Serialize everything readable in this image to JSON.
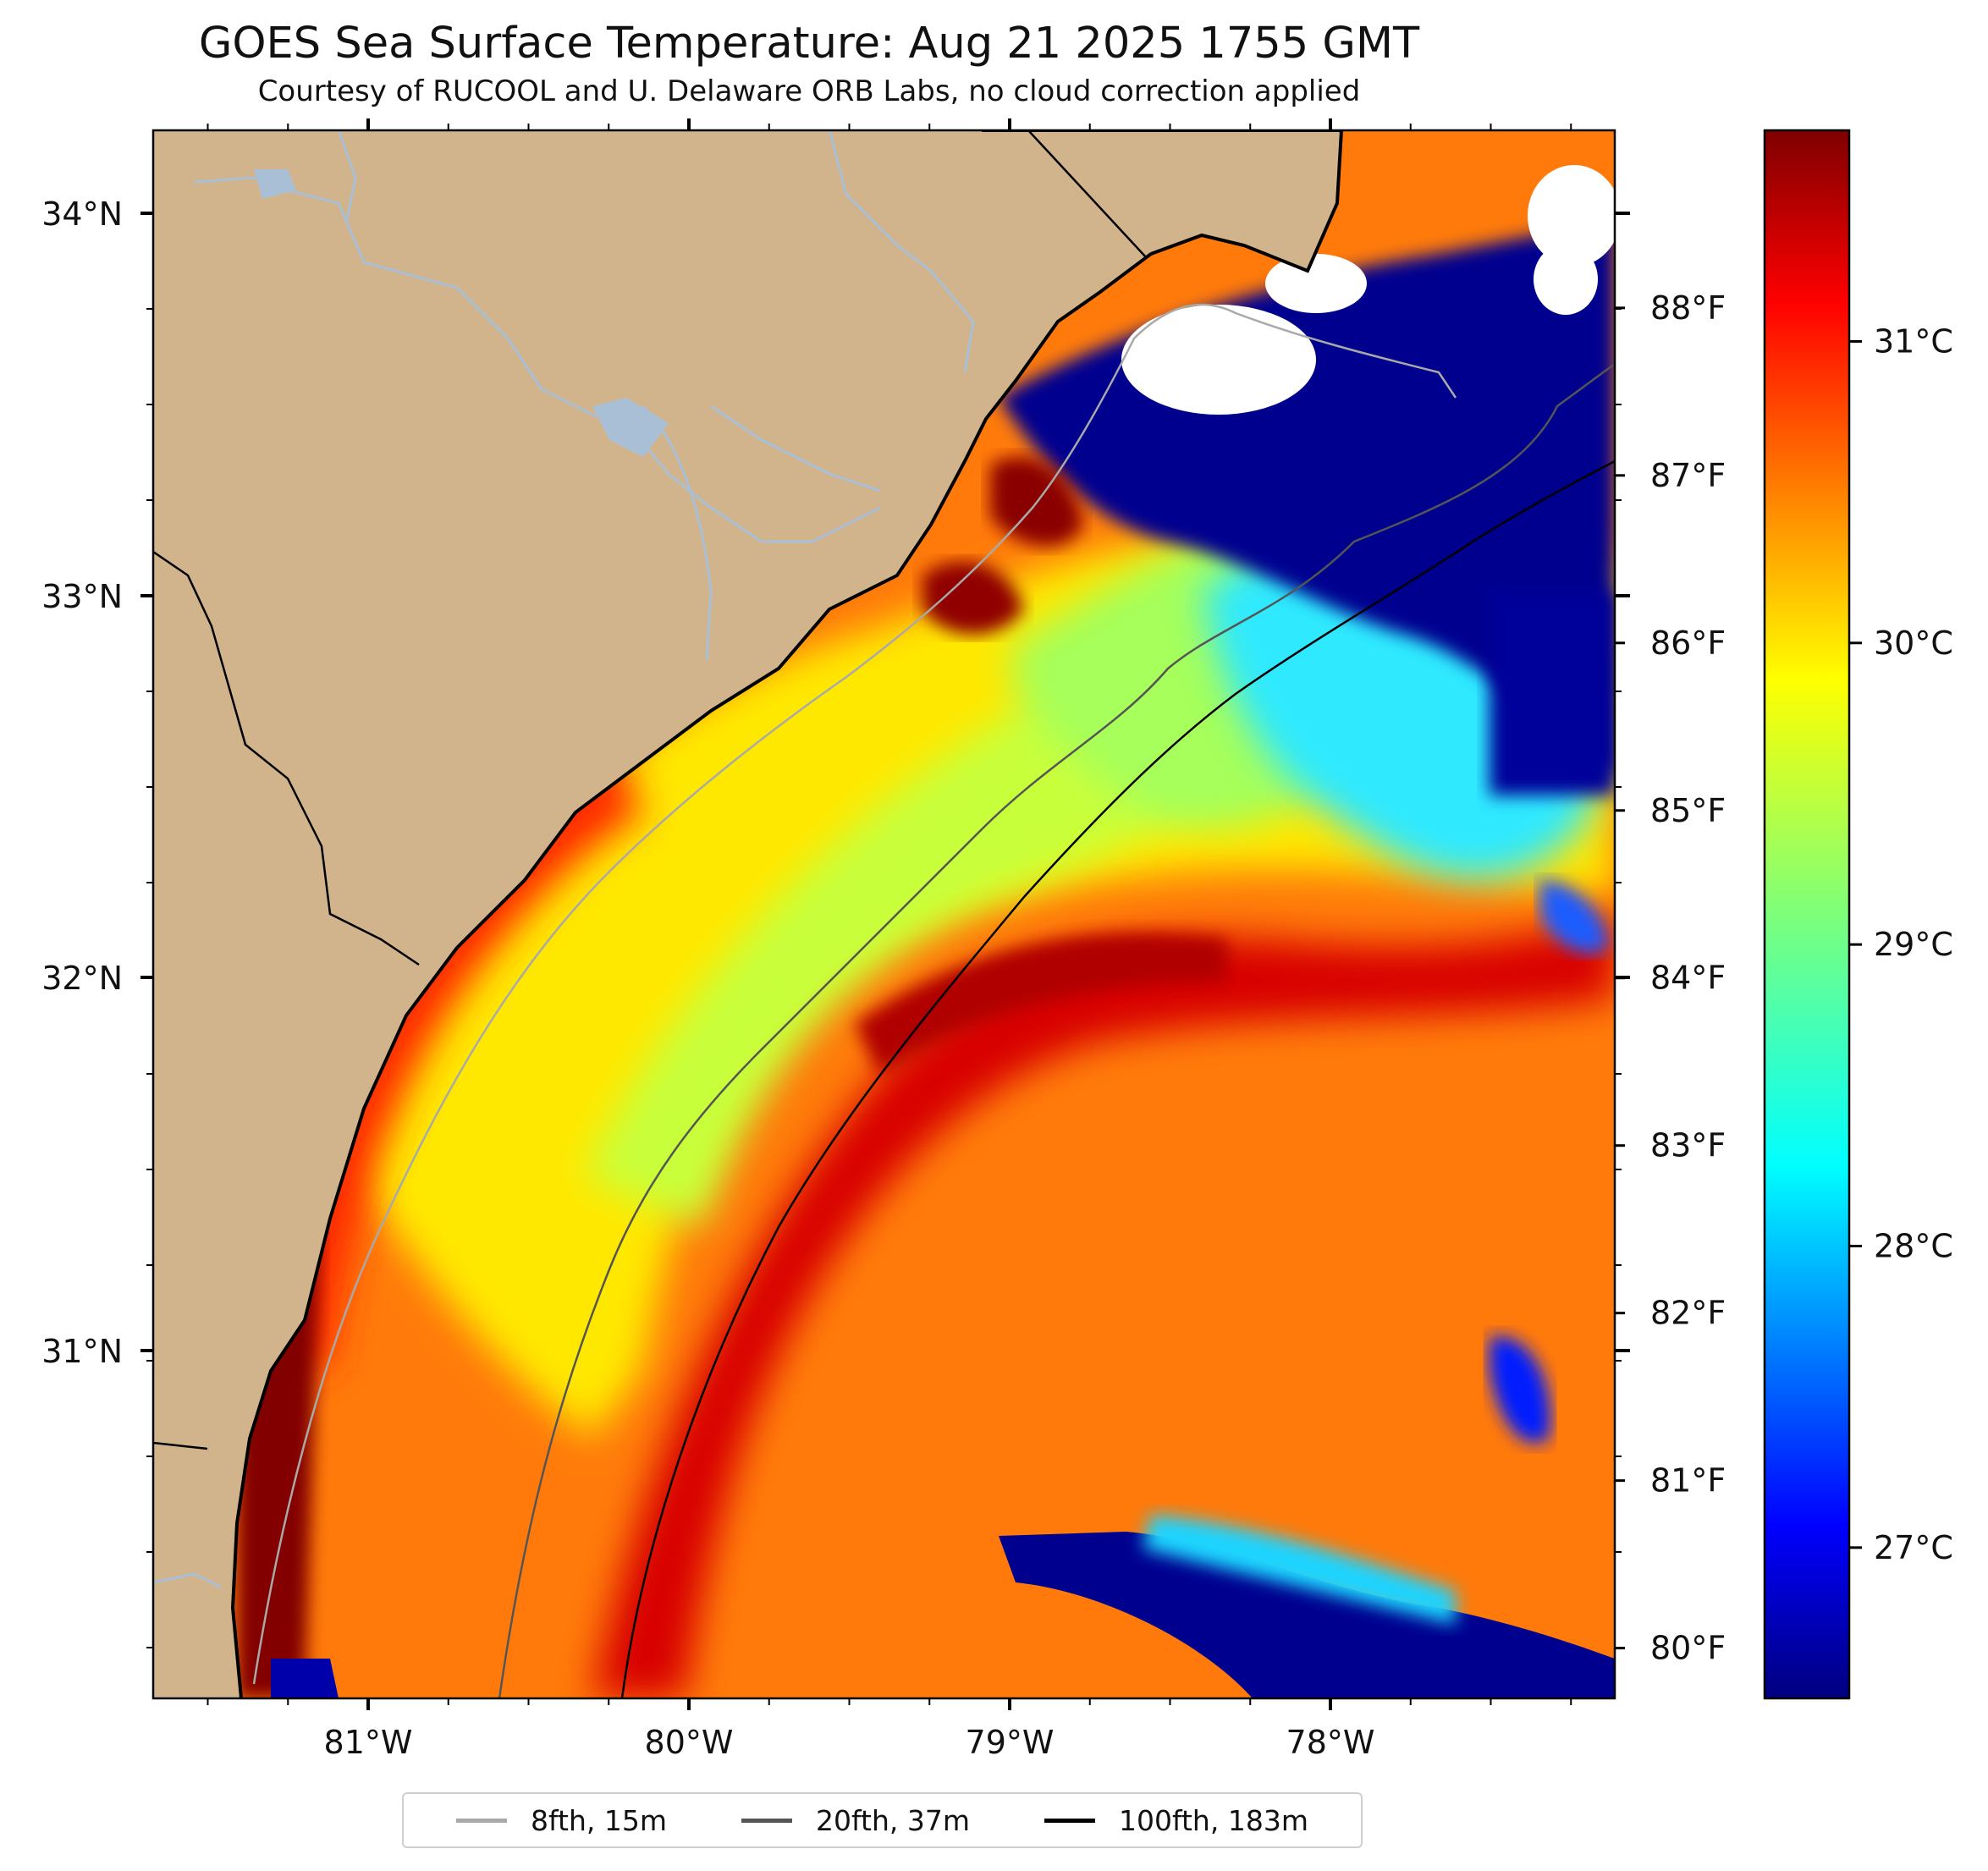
{
  "header": {
    "title": "GOES Sea Surface Temperature: Aug 21 2025 1755 GMT",
    "subtitle": "Courtesy of RUCOOL and U. Delaware ORB Labs, no cloud correction applied"
  },
  "axes": {
    "lat_labels": [
      "34°N",
      "33°N",
      "32°N",
      "31°N"
    ],
    "lon_labels": [
      "81°W",
      "80°W",
      "79°W",
      "78°W"
    ],
    "lat_range": [
      30.1,
      34.2
    ],
    "lon_range": [
      -81.66,
      -77.1
    ]
  },
  "colorbar": {
    "celsius_labels": [
      "31°C",
      "30°C",
      "29°C",
      "28°C",
      "27°C"
    ],
    "celsius_values": [
      31,
      30,
      29,
      28,
      27
    ],
    "fahrenheit_labels": [
      "88°F",
      "87°F",
      "86°F",
      "85°F",
      "84°F",
      "83°F",
      "82°F",
      "81°F",
      "80°F"
    ],
    "fahrenheit_values": [
      88,
      87,
      86,
      85,
      84,
      83,
      82,
      81,
      80
    ],
    "range_c": [
      26.5,
      31.7
    ],
    "colormap": "jet"
  },
  "legend": {
    "items": [
      {
        "label": "8fth, 15m",
        "color": "#a9a9a9"
      },
      {
        "label": "20fth, 37m",
        "color": "#555555"
      },
      {
        "label": "100fth, 183m",
        "color": "#000000"
      }
    ]
  },
  "colors": {
    "land": "#d2b48c",
    "river": "#a9bfd6",
    "cloud": "#ffffff"
  }
}
